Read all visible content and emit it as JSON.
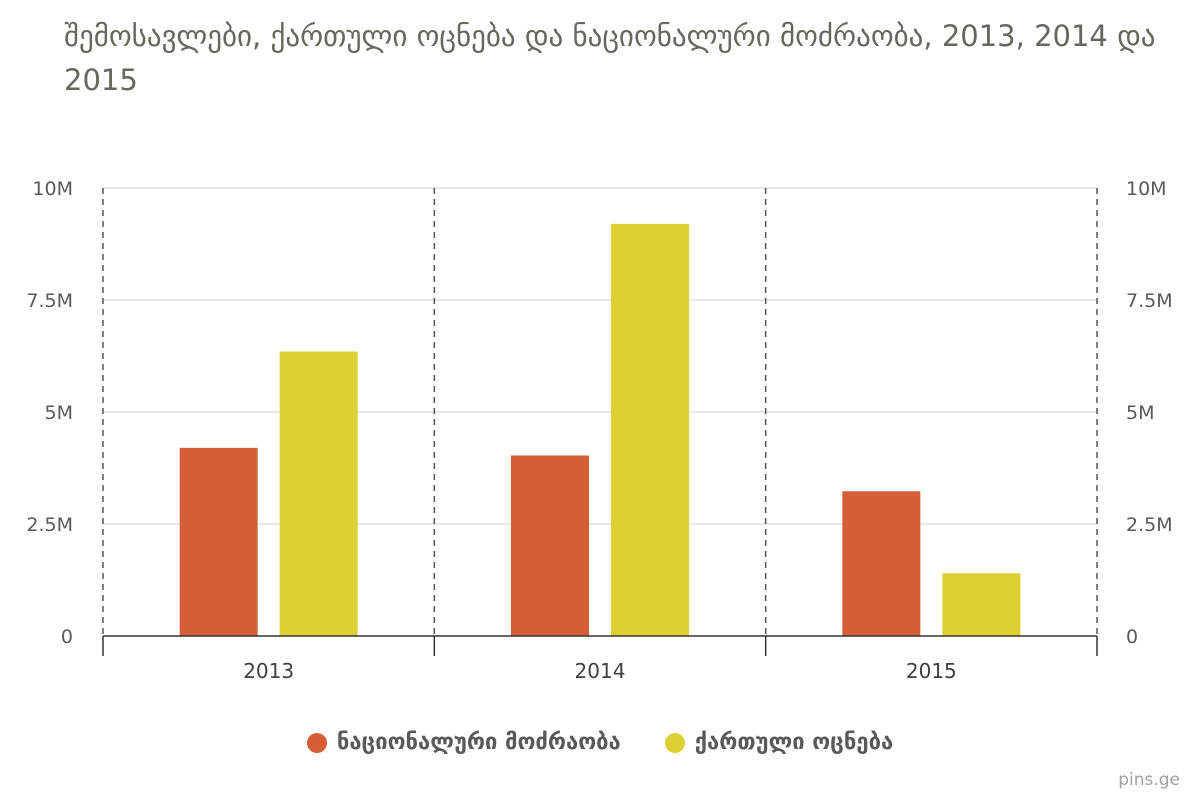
{
  "chart_data": {
    "type": "bar",
    "title": "შემოსავლები, ქართული ოცნება და ნაციონალური მოძრაობა, 2013, 2014 და 2015",
    "categories": [
      "2013",
      "2014",
      "2015"
    ],
    "series": [
      {
        "name": "ნაციონალური მოძრაობა",
        "color": "#d45f36",
        "values": [
          4.2,
          4.03,
          3.23
        ]
      },
      {
        "name": "ქართული ოცნება",
        "color": "#dcd035",
        "values": [
          6.35,
          9.2,
          1.4
        ]
      }
    ],
    "yticks": [
      "0",
      "2.5M",
      "5M",
      "7.5M",
      "10M"
    ],
    "ytick_values": [
      0,
      2.5,
      5,
      7.5,
      10
    ],
    "ylim": [
      0,
      10
    ],
    "y_unit": "M",
    "grid": true,
    "legend_position": "bottom-center",
    "secondary_y_axis": true
  },
  "credit": "pins.ge"
}
